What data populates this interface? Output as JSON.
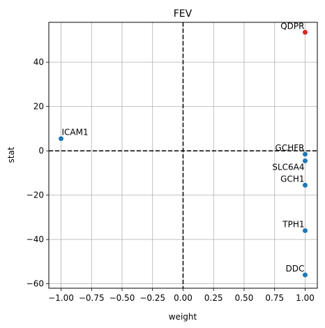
{
  "chart_data": {
    "type": "scatter",
    "title": "FEV",
    "xlabel": "weight",
    "ylabel": "stat",
    "xlim": [
      -1.1,
      1.1
    ],
    "ylim": [
      -62,
      58
    ],
    "xticks": [
      -1.0,
      -0.75,
      -0.5,
      -0.25,
      0.0,
      0.25,
      0.5,
      0.75,
      1.0
    ],
    "xtick_labels": [
      "−1.00",
      "−0.75",
      "−0.50",
      "−0.25",
      "0.00",
      "0.25",
      "0.50",
      "0.75",
      "1.00"
    ],
    "yticks": [
      -60,
      -40,
      -20,
      0,
      20,
      40
    ],
    "ytick_labels": [
      "−60",
      "−40",
      "−20",
      "0",
      "20",
      "40"
    ],
    "grid": true,
    "reference_lines": {
      "x": 0,
      "y": 0,
      "style": "dashed",
      "color": "#000000"
    },
    "points": [
      {
        "label": "QDPR",
        "x": 1.0,
        "y": 53.5,
        "color": "#d62728",
        "label_side": "left"
      },
      {
        "label": "ICAM1",
        "x": -1.0,
        "y": 5.5,
        "color": "#1f77b4",
        "label_side": "right"
      },
      {
        "label": "GCHFR",
        "x": 1.0,
        "y": -1.5,
        "color": "#1f77b4",
        "label_side": "left"
      },
      {
        "label": "SLC6A4",
        "x": 1.0,
        "y": -4.5,
        "color": "#1f77b4",
        "label_side": "left-below"
      },
      {
        "label": "GCH1",
        "x": 1.0,
        "y": -15.5,
        "color": "#1f77b4",
        "label_side": "left"
      },
      {
        "label": "TPH1",
        "x": 1.0,
        "y": -36.0,
        "color": "#1f77b4",
        "label_side": "left"
      },
      {
        "label": "DDC",
        "x": 1.0,
        "y": -56.0,
        "color": "#1f77b4",
        "label_side": "left"
      }
    ]
  }
}
